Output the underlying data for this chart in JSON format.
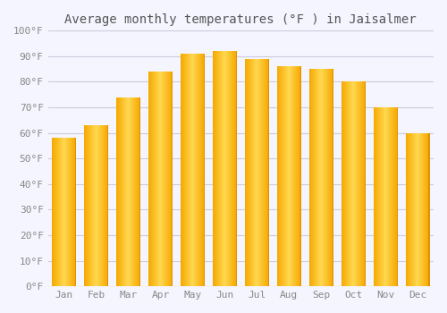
{
  "title": "Average monthly temperatures (°F ) in Jaisalmer",
  "months": [
    "Jan",
    "Feb",
    "Mar",
    "Apr",
    "May",
    "Jun",
    "Jul",
    "Aug",
    "Sep",
    "Oct",
    "Nov",
    "Dec"
  ],
  "values": [
    58,
    63,
    74,
    84,
    91,
    92,
    89,
    86,
    85,
    80,
    70,
    60
  ],
  "bar_color_center": "#FFD040",
  "bar_color_left": "#F5A800",
  "bar_color_right": "#FFC020",
  "ylim": [
    0,
    100
  ],
  "ytick_step": 10,
  "background_color": "#F5F5FF",
  "plot_bg_color": "#F5F5FF",
  "grid_color": "#CCCCDD",
  "title_fontsize": 10,
  "tick_fontsize": 8,
  "tick_label_color": "#888888",
  "title_color": "#555555"
}
